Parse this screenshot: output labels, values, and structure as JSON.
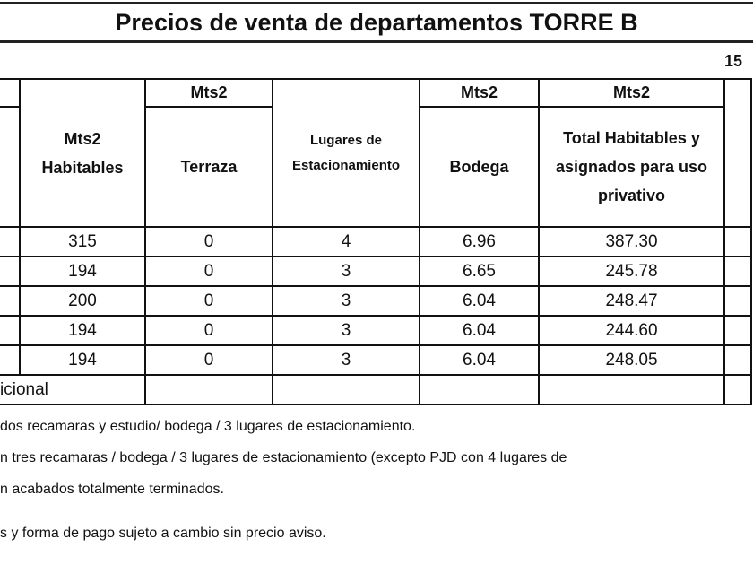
{
  "title": "Precios de venta de departamentos TORRE B",
  "page_number": "15",
  "table": {
    "header_top": {
      "terraza_unit": "Mts2",
      "bodega_unit": "Mts2",
      "total_unit": "Mts2"
    },
    "columns": {
      "habitables": "Mts2 Habitables",
      "terraza": "Terraza",
      "estacionamiento": "Lugares de Estacionamiento",
      "bodega": "Bodega",
      "total": "Total Habitables y asignados para uso privativo"
    },
    "rows": [
      {
        "habitables": "315",
        "terraza": "0",
        "estacionamiento": "4",
        "bodega": "6.96",
        "total": "387.30"
      },
      {
        "habitables": "194",
        "terraza": "0",
        "estacionamiento": "3",
        "bodega": "6.65",
        "total": "245.78"
      },
      {
        "habitables": "200",
        "terraza": "0",
        "estacionamiento": "3",
        "bodega": "6.04",
        "total": "248.47"
      },
      {
        "habitables": "194",
        "terraza": "0",
        "estacionamiento": "3",
        "bodega": "6.04",
        "total": "244.60"
      },
      {
        "habitables": "194",
        "terraza": "0",
        "estacionamiento": "3",
        "bodega": "6.04",
        "total": "248.05"
      }
    ],
    "last_row_label": "icional"
  },
  "notes": [
    " dos recamaras y estudio/ bodega / 3 lugares de estacionamiento.",
    "n tres recamaras / bodega / 3 lugares de estacionamiento (excepto PJD con 4 lugares de",
    "n acabados totalmente terminados.",
    "s y forma de pago sujeto a cambio sin precio aviso."
  ]
}
